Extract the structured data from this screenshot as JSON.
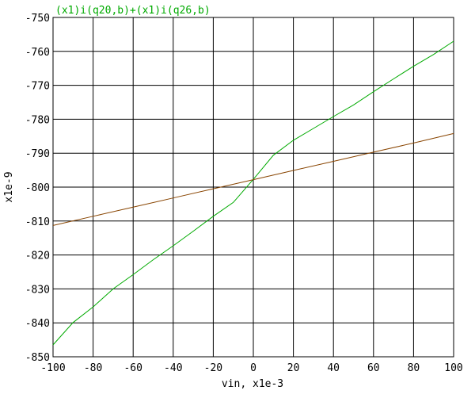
{
  "chart_data": {
    "type": "line",
    "title": "",
    "legend_text": "(x1)i(q20,b)+(x1)i(q26,b)",
    "xlabel": "vin, x1e-3",
    "ylabel": "x1e-9",
    "xlim": [
      -100,
      100
    ],
    "ylim": [
      -850,
      -750
    ],
    "x_ticks": [
      -100,
      -80,
      -60,
      -40,
      -20,
      0,
      20,
      40,
      60,
      80,
      100
    ],
    "y_ticks": [
      -750,
      -760,
      -770,
      -780,
      -790,
      -800,
      -810,
      -820,
      -830,
      -840,
      -850
    ],
    "x_tick_labels": [
      "-100",
      "-80",
      "-60",
      "-40",
      "-20",
      "0",
      "20",
      "40",
      "60",
      "80",
      "100"
    ],
    "y_tick_labels": [
      "-750",
      "-760",
      "-770",
      "-780",
      "-790",
      "-800",
      "-810",
      "-820",
      "-830",
      "-840",
      "-850"
    ],
    "grid": true,
    "legend_position": "top-left",
    "series": [
      {
        "color": "#00aa00",
        "x": [
          -100,
          -90,
          -80,
          -70,
          -60,
          -50,
          -40,
          -30,
          -20,
          -10,
          0,
          10,
          20,
          30,
          40,
          50,
          60,
          70,
          80,
          90,
          100
        ],
        "y": [
          -846.5,
          -839.9,
          -835.3,
          -830.0,
          -825.8,
          -821.4,
          -817.3,
          -813.0,
          -808.6,
          -804.5,
          -797.7,
          -790.6,
          -786.2,
          -782.7,
          -779.2,
          -775.8,
          -771.9,
          -768.1,
          -764.4,
          -760.9,
          -757.0
        ]
      },
      {
        "color": "#884400",
        "x": [
          -100,
          -80,
          -60,
          -40,
          -20,
          0,
          20,
          40,
          60,
          80,
          100
        ],
        "y": [
          -811.3,
          -808.6,
          -805.9,
          -803.2,
          -800.5,
          -797.8,
          -795.1,
          -792.4,
          -789.7,
          -787.0,
          -784.2
        ]
      }
    ]
  }
}
